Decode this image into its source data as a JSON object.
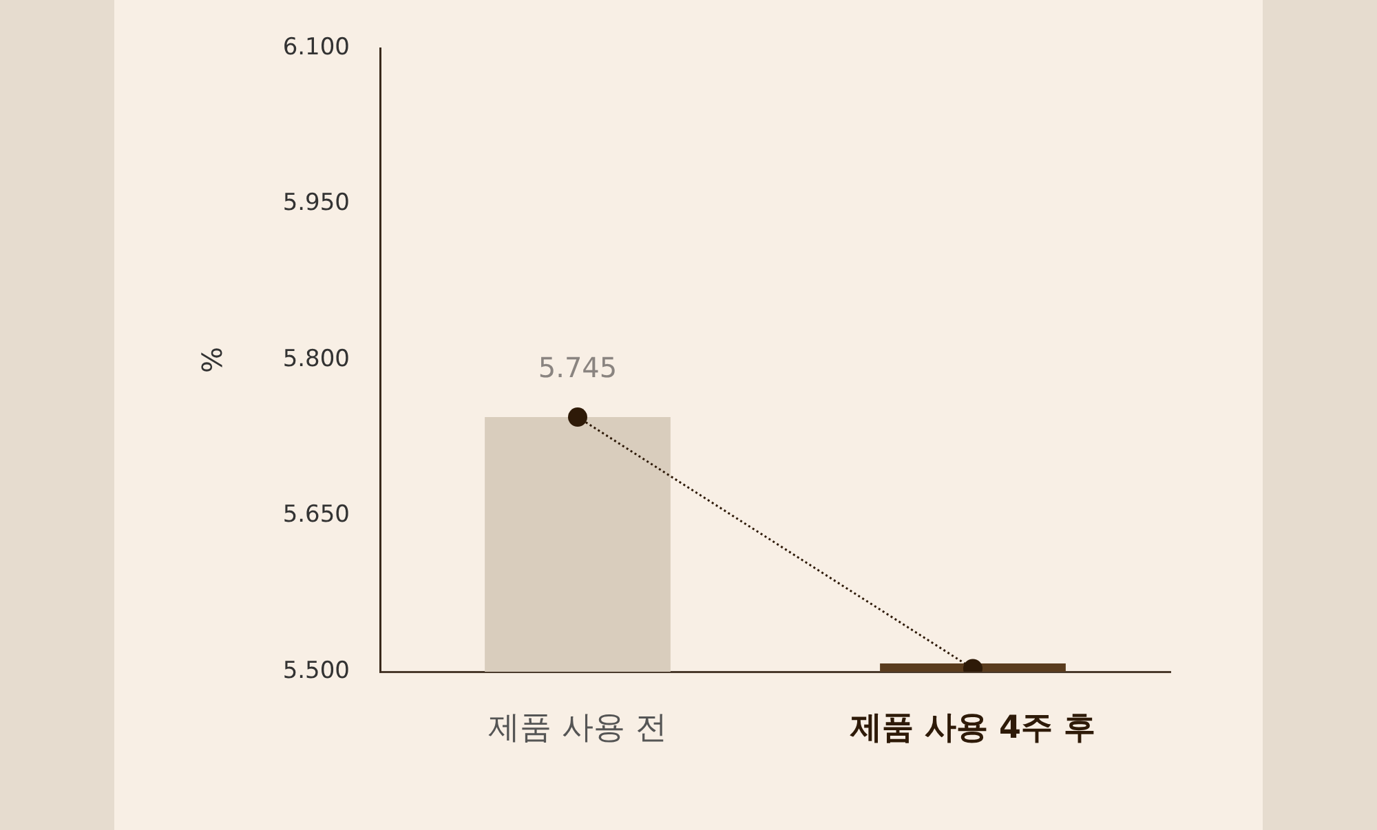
{
  "chart_data": {
    "type": "bar",
    "ylabel": "%",
    "categories": [
      "제품 사용 전",
      "제품 사용 4주 후"
    ],
    "ylim": [
      5.5,
      6.1
    ],
    "yticks": [
      {
        "value": 5.5,
        "label": "5.500"
      },
      {
        "value": 5.65,
        "label": "5.650"
      },
      {
        "value": 5.8,
        "label": "5.800"
      },
      {
        "value": 5.95,
        "label": "5.950"
      },
      {
        "value": 6.1,
        "label": "6.100"
      }
    ],
    "grid": false,
    "legend": false,
    "series": [
      {
        "colors": [
          "#d9cdbd",
          "#5a3c1e"
        ],
        "values": [
          5.745,
          5.508
        ]
      },
      {
        "type": "line",
        "color": "#2e1a08",
        "values": [
          5.745,
          5.503
        ],
        "marker": "circle",
        "line_style": "dotted",
        "value_labels": [
          "5.745",
          null
        ]
      }
    ]
  }
}
